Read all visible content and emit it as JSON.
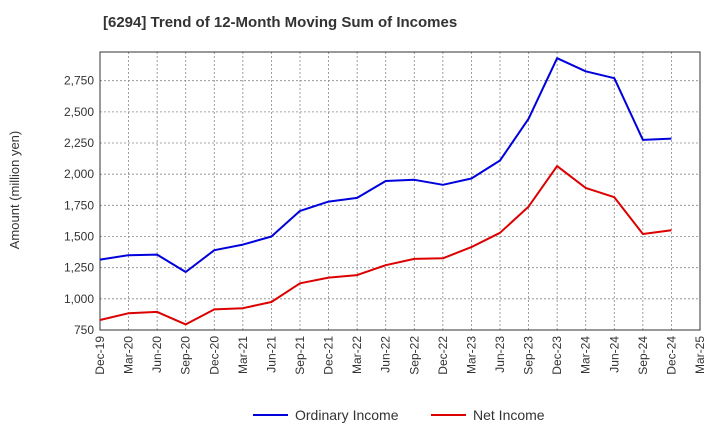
{
  "chart_data": {
    "type": "line",
    "title": "[6294]  Trend of 12-Month Moving Sum of Incomes",
    "xlabel": "",
    "ylabel": "Amount (million yen)",
    "ylim": [
      750,
      2980
    ],
    "yticks": [
      750,
      1000,
      1250,
      1500,
      1750,
      2000,
      2250,
      2500,
      2750
    ],
    "ytick_labels": [
      "750",
      "1,000",
      "1,250",
      "1,500",
      "1,750",
      "2,000",
      "2,250",
      "2,500",
      "2,750"
    ],
    "grid": true,
    "legend_position": "bottom",
    "categories": [
      "Dec-19",
      "Mar-20",
      "Jun-20",
      "Sep-20",
      "Dec-20",
      "Mar-21",
      "Jun-21",
      "Sep-21",
      "Dec-21",
      "Mar-22",
      "Jun-22",
      "Sep-22",
      "Dec-22",
      "Mar-23",
      "Jun-23",
      "Sep-23",
      "Dec-23",
      "Mar-24",
      "Jun-24",
      "Sep-24",
      "Dec-24",
      "Mar-25"
    ],
    "series": [
      {
        "name": "Ordinary Income",
        "color": "#0000dd",
        "values": [
          1315,
          1350,
          1355,
          1215,
          1390,
          1435,
          1500,
          1705,
          1780,
          1810,
          1945,
          1955,
          1915,
          1965,
          2110,
          2445,
          2930,
          2825,
          2770,
          2275,
          2285,
          null
        ]
      },
      {
        "name": "Net Income",
        "color": "#dd0000",
        "values": [
          830,
          885,
          895,
          795,
          915,
          925,
          975,
          1125,
          1170,
          1190,
          1270,
          1320,
          1325,
          1415,
          1530,
          1740,
          2065,
          1890,
          1815,
          1520,
          1550,
          null
        ]
      }
    ]
  }
}
